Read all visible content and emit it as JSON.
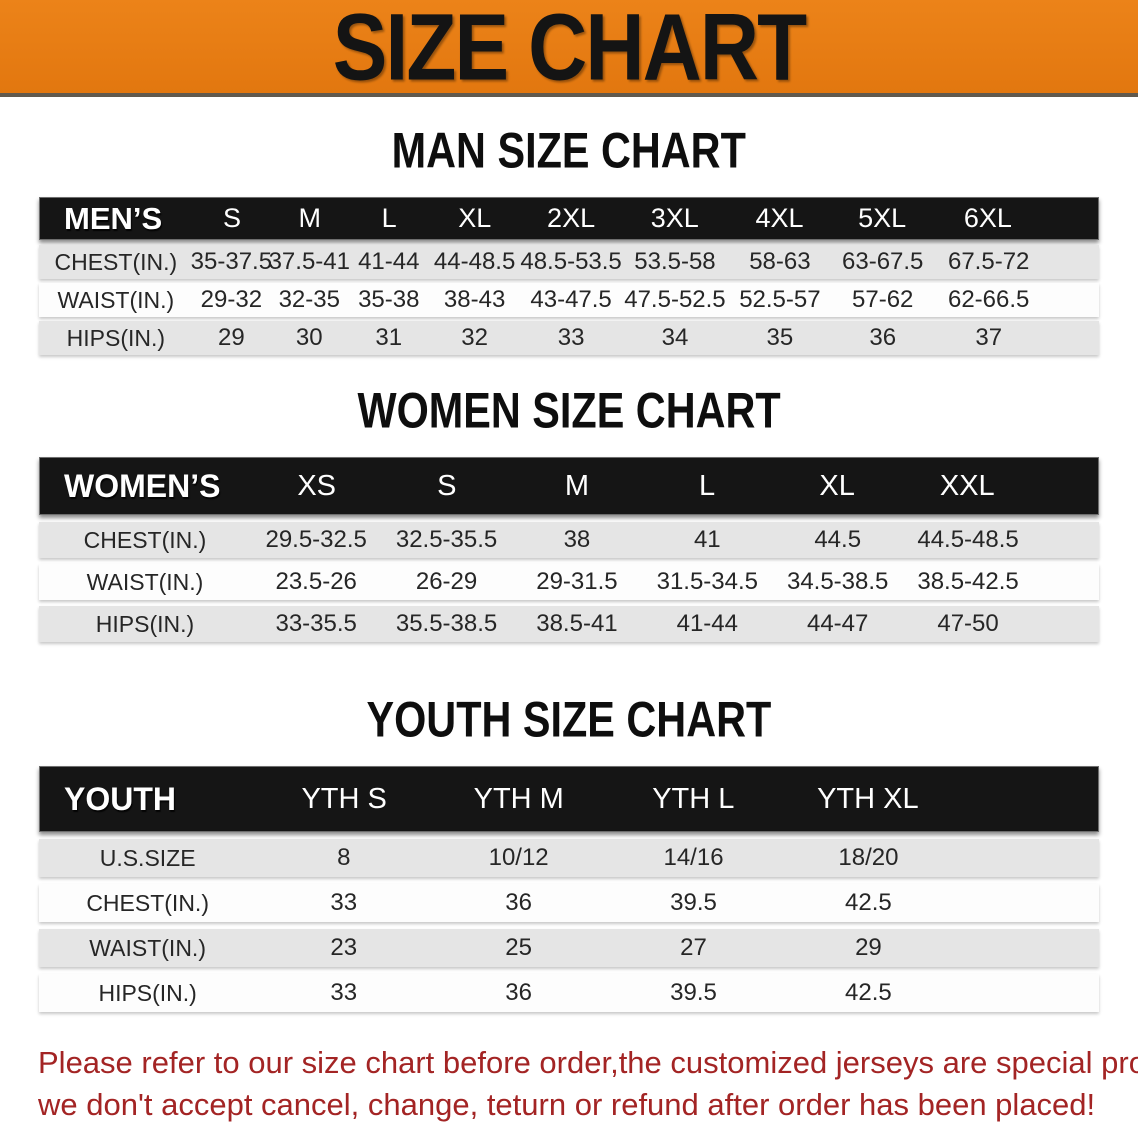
{
  "banner": {
    "title": "SIZE CHART",
    "bg_color": "#e67d16",
    "text_color": "#141414"
  },
  "sections": [
    {
      "heading": "MAN SIZE CHART",
      "table": {
        "label": "MEN’S",
        "columns": [
          "S",
          "M",
          "L",
          "XL",
          "2XL",
          "3XL",
          "4XL",
          "5XL",
          "6XL"
        ],
        "rows": [
          {
            "label": "CHEST(IN.)",
            "values": [
              "35-37.5",
              "37.5-41",
              "41-44",
              "44-48.5",
              "48.5-53.5",
              "53.5-58",
              "58-63",
              "63-67.5",
              "67.5-72"
            ]
          },
          {
            "label": "WAIST(IN.)",
            "values": [
              "29-32",
              "32-35",
              "35-38",
              "38-43",
              "43-47.5",
              "47.5-52.5",
              "52.5-57",
              "57-62",
              "62-66.5"
            ]
          },
          {
            "label": "HIPS(IN.)",
            "values": [
              "29",
              "30",
              "31",
              "32",
              "33",
              "34",
              "35",
              "36",
              "37"
            ]
          }
        ]
      }
    },
    {
      "heading": "WOMEN SIZE CHART",
      "table": {
        "label": "WOMEN’S",
        "columns": [
          "XS",
          "S",
          "M",
          "L",
          "XL",
          "XXL"
        ],
        "rows": [
          {
            "label": "CHEST(IN.)",
            "values": [
              "29.5-32.5",
              "32.5-35.5",
              "38",
              "41",
              "44.5",
              "44.5-48.5"
            ]
          },
          {
            "label": "WAIST(IN.)",
            "values": [
              "23.5-26",
              "26-29",
              "29-31.5",
              "31.5-34.5",
              "34.5-38.5",
              "38.5-42.5"
            ]
          },
          {
            "label": "HIPS(IN.)",
            "values": [
              "33-35.5",
              "35.5-38.5",
              "38.5-41",
              "41-44",
              "44-47",
              "47-50"
            ]
          }
        ]
      }
    },
    {
      "heading": "YOUTH SIZE CHART",
      "table": {
        "label": "YOUTH",
        "columns": [
          "YTH S",
          "YTH M",
          "YTH L",
          "YTH XL"
        ],
        "rows": [
          {
            "label": "U.S.SIZE",
            "values": [
              "8",
              "10/12",
              "14/16",
              "18/20"
            ]
          },
          {
            "label": "CHEST(IN.)",
            "values": [
              "33",
              "36",
              "39.5",
              "42.5"
            ]
          },
          {
            "label": "WAIST(IN.)",
            "values": [
              "23",
              "25",
              "27",
              "29"
            ]
          },
          {
            "label": "HIPS(IN.)",
            "values": [
              "33",
              "36",
              "39.5",
              "42.5"
            ]
          }
        ]
      }
    }
  ],
  "disclaimer": {
    "line1": "Please refer to our size chart before order,the customized jerseys are special products,",
    "line2": "we don't accept cancel, change, teturn or refund after order has been placed!",
    "color": "#a32424"
  }
}
